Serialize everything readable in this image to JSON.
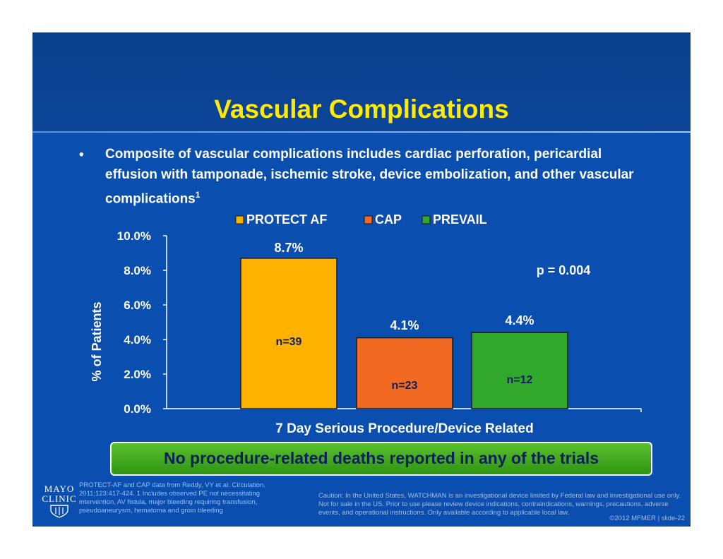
{
  "slide": {
    "title": "Vascular Complications",
    "bullet_marker": "•",
    "bullet_text": "Composite of vascular complications includes cardiac perforation, pericardial effusion with tamponade, ischemic stroke, device embolization, and other vascular complications",
    "bullet_superscript": "1",
    "banner": "No procedure-related deaths reported in any of the trials",
    "logo": {
      "line1": "MAYO",
      "line2": "CLINIC",
      "icon": "shield-icon"
    },
    "footnote_left": "PROTECT-AF and CAP data from Reddy, VY et al. Circulation. 2011;123:417-424. 1 Includes observed PE not necessitating intervention, AV fistula, major bleeding requiring transfusion, pseudoaneurysm, hematoma and groin bleeding",
    "footnote_right": "Caution: In the United States, WATCHMAN is an investigational device limited by Federal law and investigational use only.  Not for sale in the US. Prior to use please review device indications, contraindications, warnings, precautions, adverse events, and operational instructions.  Only available according to applicable local law.",
    "copyright": "©2012 MFMER  |  slide-22",
    "colors": {
      "background": "#0a4fb0",
      "title": "#ffea00",
      "banner": "#3aa51c",
      "banner_text": "#0a1f5c"
    }
  },
  "chart_data": {
    "type": "bar",
    "categories": [
      "7 Day Serious Procedure/Device Related"
    ],
    "xlabel": "7 Day Serious Procedure/Device Related",
    "ylabel": "% of Patients",
    "ylim": [
      0,
      10
    ],
    "yticks": [
      "0.0%",
      "2.0%",
      "4.0%",
      "6.0%",
      "8.0%",
      "10.0%"
    ],
    "grid": false,
    "legend_position": "top",
    "series": [
      {
        "name": "PROTECT AF",
        "values": [
          8.7
        ],
        "label": "8.7%",
        "n_label": "n=39",
        "color": "#ffb300"
      },
      {
        "name": "CAP",
        "values": [
          4.1
        ],
        "label": "4.1%",
        "n_label": "n=23",
        "color": "#f26a21"
      },
      {
        "name": "PREVAIL",
        "values": [
          4.4
        ],
        "label": "4.4%",
        "n_label": "n=12",
        "color": "#2fa82c"
      }
    ],
    "annotation": "p = 0.004"
  }
}
